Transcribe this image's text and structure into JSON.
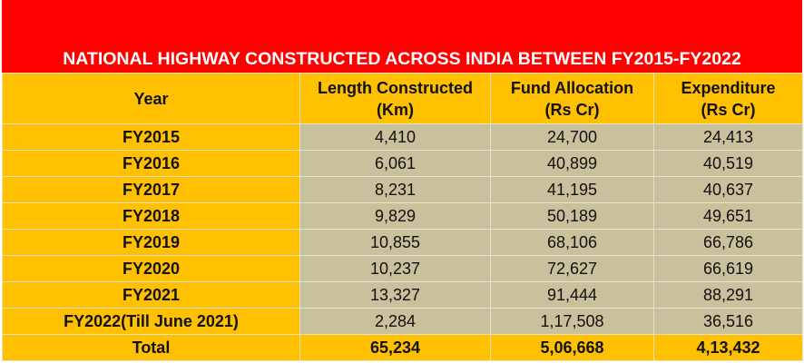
{
  "colors": {
    "title_bg": "#FF0000",
    "header_bg": "#FFC000",
    "cell_bg": "#C9C09C"
  },
  "chart_data": {
    "type": "table",
    "title": "NATIONAL HIGHWAY CONSTRUCTED ACROSS INDIA BETWEEN FY2015-FY2022",
    "columns": [
      {
        "line1": "Year",
        "line2": ""
      },
      {
        "line1": "Length Constructed",
        "line2": "(Km)"
      },
      {
        "line1": "Fund Allocation",
        "line2": "(Rs Cr)"
      },
      {
        "line1": "Expenditure",
        "line2": "(Rs Cr)"
      }
    ],
    "rows": [
      {
        "year": "FY2015",
        "length": "4,410",
        "fund": "24,700",
        "exp": "24,413"
      },
      {
        "year": "FY2016",
        "length": "6,061",
        "fund": "40,899",
        "exp": "40,519"
      },
      {
        "year": "FY2017",
        "length": "8,231",
        "fund": "41,195",
        "exp": "40,637"
      },
      {
        "year": "FY2018",
        "length": "9,829",
        "fund": "50,189",
        "exp": "49,651"
      },
      {
        "year": "FY2019",
        "length": "10,855",
        "fund": "68,106",
        "exp": "66,786"
      },
      {
        "year": "FY2020",
        "length": "10,237",
        "fund": "72,627",
        "exp": "66,619"
      },
      {
        "year": "FY2021",
        "length": "13,327",
        "fund": "91,444",
        "exp": "88,291"
      },
      {
        "year": "FY2022(Till June 2021)",
        "length": "2,284",
        "fund": "1,17,508",
        "exp": "36,516"
      }
    ],
    "total": {
      "year": "Total",
      "length": "65,234",
      "fund": "5,06,668",
      "exp": "4,13,432"
    }
  }
}
